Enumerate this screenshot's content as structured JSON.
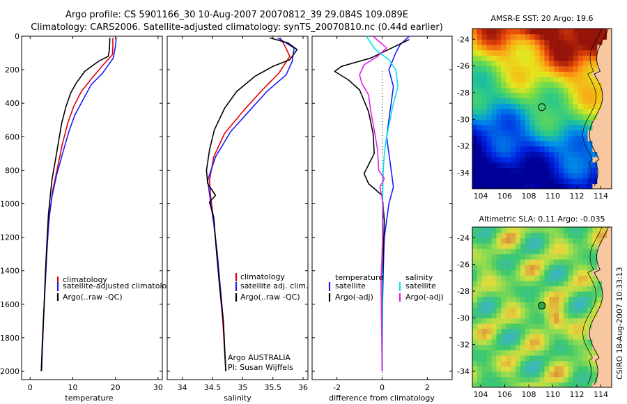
{
  "header": {
    "line1": "Argo profile: CS 5901166_30 10-Aug-2007 20070812_39 29.084S 109.089E",
    "line2": "Climatology: CARS2006. Satellite-adjusted climatology: synTS_20070810.nc (0.44d earlier)"
  },
  "side_label": "CSIRO 18-Aug-2007 10:33:13",
  "colors": {
    "climatology": "#e00000",
    "satellite": "#1a1aff",
    "argo": "#000000",
    "salinity_sat": "#00e5e5",
    "salinity_argo": "#e51ee5"
  },
  "chart_data": [
    {
      "type": "line",
      "xlabel": "temperature",
      "xticks": [
        "0",
        "10",
        "20",
        "30"
      ],
      "yticks": [
        "0",
        "200",
        "400",
        "600",
        "800",
        "1000",
        "1200",
        "1400",
        "1600",
        "1800",
        "2000"
      ],
      "xlim": [
        -2,
        31
      ],
      "ylim": [
        2050,
        0
      ],
      "legend": [
        "climatology",
        "satellite-adjusted climatology",
        "Argo(..raw -QC)"
      ],
      "series": [
        {
          "name": "climatology",
          "color": "#e00000",
          "points": [
            [
              19.4,
              10
            ],
            [
              19.4,
              60
            ],
            [
              19.3,
              110
            ],
            [
              17.5,
              160
            ],
            [
              14.5,
              250
            ],
            [
              12,
              330
            ],
            [
              10.2,
              420
            ],
            [
              8.8,
              520
            ],
            [
              7.5,
              650
            ],
            [
              6.3,
              800
            ],
            [
              5.3,
              920
            ],
            [
              4.6,
              1050
            ],
            [
              4.1,
              1200
            ],
            [
              3.7,
              1400
            ],
            [
              3.3,
              1600
            ],
            [
              3.0,
              1800
            ],
            [
              2.6,
              2000
            ]
          ]
        },
        {
          "name": "satellite-adjusted climatology",
          "color": "#1a1aff",
          "points": [
            [
              20.2,
              10
            ],
            [
              20,
              60
            ],
            [
              19.5,
              130
            ],
            [
              17,
              220
            ],
            [
              14.3,
              290
            ],
            [
              12.6,
              370
            ],
            [
              10.5,
              470
            ],
            [
              9.2,
              560
            ],
            [
              7.6,
              700
            ],
            [
              6.2,
              830
            ],
            [
              5.1,
              960
            ],
            [
              4.4,
              1100
            ],
            [
              3.9,
              1300
            ],
            [
              3.5,
              1500
            ],
            [
              3.1,
              1700
            ],
            [
              2.7,
              2000
            ]
          ]
        },
        {
          "name": "Argo(..raw -QC)",
          "color": "#000000",
          "points": [
            [
              18.7,
              10
            ],
            [
              18.6,
              80
            ],
            [
              18.3,
              120
            ],
            [
              16,
              150
            ],
            [
              12.8,
              210
            ],
            [
              10.8,
              280
            ],
            [
              9.5,
              340
            ],
            [
              8.4,
              420
            ],
            [
              7.4,
              520
            ],
            [
              6.6,
              640
            ],
            [
              5.8,
              760
            ],
            [
              5.1,
              860
            ],
            [
              4.7,
              960
            ],
            [
              4.3,
              1060
            ],
            [
              4,
              1200
            ],
            [
              3.6,
              1400
            ],
            [
              3.3,
              1600
            ],
            [
              2.9,
              1800
            ],
            [
              2.6,
              2000
            ]
          ]
        }
      ]
    },
    {
      "type": "line",
      "xlabel": "salinity",
      "xticks": [
        "34",
        "34.5",
        "35",
        "35.5",
        "36"
      ],
      "xlim": [
        33.75,
        36.08
      ],
      "ylim": [
        2050,
        0
      ],
      "legend": [
        "climatology",
        "satellite adj. clim.",
        "Argo(..raw -QC)"
      ],
      "annotation": [
        "Argo AUSTRALIA",
        "PI: Susan Wijffels"
      ],
      "series": [
        {
          "name": "climatology",
          "color": "#e00000",
          "points": [
            [
              35.62,
              10
            ],
            [
              35.7,
              60
            ],
            [
              35.78,
              120
            ],
            [
              35.6,
              220
            ],
            [
              35.3,
              330
            ],
            [
              35.0,
              450
            ],
            [
              34.7,
              580
            ],
            [
              34.52,
              720
            ],
            [
              34.45,
              860
            ],
            [
              34.47,
              960
            ],
            [
              34.52,
              1100
            ],
            [
              34.57,
              1300
            ],
            [
              34.62,
              1500
            ],
            [
              34.67,
              1700
            ],
            [
              34.72,
              2000
            ]
          ]
        },
        {
          "name": "satellite adj. clim.",
          "color": "#1a1aff",
          "points": [
            [
              35.58,
              10
            ],
            [
              35.85,
              70
            ],
            [
              35.82,
              150
            ],
            [
              35.72,
              230
            ],
            [
              35.4,
              330
            ],
            [
              35.1,
              450
            ],
            [
              34.8,
              570
            ],
            [
              34.55,
              720
            ],
            [
              34.42,
              860
            ],
            [
              34.46,
              970
            ],
            [
              34.52,
              1120
            ],
            [
              34.58,
              1300
            ],
            [
              34.63,
              1500
            ],
            [
              34.68,
              1700
            ],
            [
              34.72,
              2000
            ]
          ]
        },
        {
          "name": "Argo(..raw -QC)",
          "color": "#000000",
          "points": [
            [
              35.45,
              10
            ],
            [
              35.75,
              40
            ],
            [
              35.9,
              80
            ],
            [
              35.78,
              140
            ],
            [
              35.5,
              180
            ],
            [
              35.2,
              240
            ],
            [
              34.9,
              330
            ],
            [
              34.7,
              430
            ],
            [
              34.53,
              560
            ],
            [
              34.45,
              680
            ],
            [
              34.4,
              800
            ],
            [
              34.42,
              880
            ],
            [
              34.55,
              950
            ],
            [
              34.45,
              990
            ],
            [
              34.52,
              1080
            ],
            [
              34.57,
              1300
            ],
            [
              34.62,
              1500
            ],
            [
              34.68,
              1700
            ],
            [
              34.72,
              2000
            ]
          ]
        }
      ]
    },
    {
      "type": "line",
      "xlabel": "difference from climatology",
      "xticks": [
        "-2",
        "0",
        "2"
      ],
      "xlim": [
        -3.1,
        3.1
      ],
      "ylim": [
        2050,
        0
      ],
      "legend_left_title": "temperature",
      "legend_left": [
        "satellite",
        "Argo(-adj)"
      ],
      "legend_right_title": "salinity",
      "legend_right": [
        "satellite",
        "Argo(-adj)"
      ],
      "series": [
        {
          "name": "temperature satellite",
          "color": "#1a1aff",
          "points": [
            [
              1.2,
              0
            ],
            [
              0.8,
              50
            ],
            [
              0.6,
              100
            ],
            [
              0.3,
              200
            ],
            [
              0.5,
              300
            ],
            [
              0.4,
              400
            ],
            [
              0.3,
              500
            ],
            [
              0.2,
              600
            ],
            [
              0.3,
              700
            ],
            [
              0.4,
              800
            ],
            [
              0.5,
              900
            ],
            [
              0.3,
              1000
            ],
            [
              0.1,
              1200
            ],
            [
              0.05,
              1400
            ],
            [
              0.02,
              1600
            ],
            [
              0.01,
              1800
            ],
            [
              0,
              2000
            ]
          ]
        },
        {
          "name": "temperature Argo(-adj)",
          "color": "#000000",
          "points": [
            [
              1.2,
              20
            ],
            [
              -0.5,
              130
            ],
            [
              -1.8,
              180
            ],
            [
              -2.1,
              210
            ],
            [
              -1.5,
              260
            ],
            [
              -1.0,
              320
            ],
            [
              -0.6,
              450
            ],
            [
              -0.4,
              580
            ],
            [
              -0.35,
              700
            ],
            [
              -0.8,
              820
            ],
            [
              -0.6,
              880
            ],
            [
              0,
              950
            ],
            [
              0.1,
              1100
            ],
            [
              0.05,
              1300
            ],
            [
              0.02,
              1500
            ],
            [
              0,
              1800
            ],
            [
              0,
              2000
            ]
          ]
        },
        {
          "name": "salinity satellite",
          "color": "#00e5e5",
          "points": [
            [
              -0.7,
              0
            ],
            [
              -0.3,
              80
            ],
            [
              0.3,
              140
            ],
            [
              0.6,
              200
            ],
            [
              0.7,
              300
            ],
            [
              0.5,
              400
            ],
            [
              0.35,
              500
            ],
            [
              0.2,
              600
            ],
            [
              0.1,
              700
            ],
            [
              0.05,
              800
            ],
            [
              0.02,
              1000
            ],
            [
              0,
              1400
            ],
            [
              0,
              2000
            ]
          ]
        },
        {
          "name": "salinity Argo(-adj)",
          "color": "#e51ee5",
          "points": [
            [
              -0.4,
              0
            ],
            [
              0.2,
              70
            ],
            [
              -0.2,
              120
            ],
            [
              -0.8,
              170
            ],
            [
              -1.0,
              230
            ],
            [
              -0.9,
              280
            ],
            [
              -0.6,
              350
            ],
            [
              -0.5,
              450
            ],
            [
              -0.35,
              560
            ],
            [
              -0.2,
              680
            ],
            [
              -0.15,
              800
            ],
            [
              0.1,
              850
            ],
            [
              -0.1,
              900
            ],
            [
              0.05,
              1000
            ],
            [
              0,
              1300
            ],
            [
              -0.05,
              1450
            ],
            [
              0,
              2000
            ]
          ]
        }
      ]
    },
    {
      "type": "heatmap",
      "title": "AMSR-E SST: 20 Argo: 19.6",
      "xticks": [
        "104",
        "106",
        "108",
        "110",
        "112",
        "114"
      ],
      "yticks": [
        "-24",
        "-26",
        "-28",
        "-30",
        "-32",
        "-34"
      ],
      "xlim": [
        103.3,
        114.9
      ],
      "ylim": [
        -35.2,
        -23.2
      ],
      "marker": [
        109.089,
        -29.084
      ]
    },
    {
      "type": "heatmap",
      "title": "Altimetric SLA: 0.11 Argo: -0.035",
      "xticks": [
        "104",
        "106",
        "108",
        "110",
        "112",
        "114"
      ],
      "yticks": [
        "-24",
        "-26",
        "-28",
        "-30",
        "-32",
        "-34"
      ],
      "xlim": [
        103.3,
        114.9
      ],
      "ylim": [
        -35.2,
        -23.2
      ],
      "marker": [
        109.089,
        -29.084
      ]
    }
  ]
}
